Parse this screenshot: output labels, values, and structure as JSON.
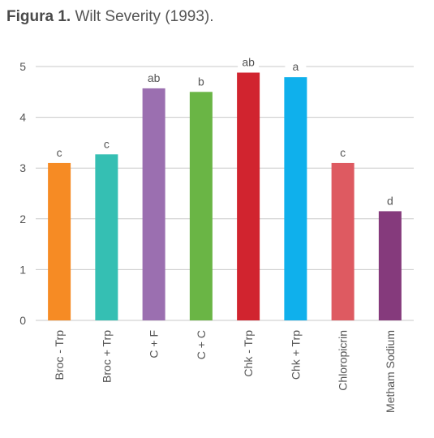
{
  "title": {
    "label": "Figura 1.",
    "text": "Wilt Severity (1993)."
  },
  "chart_data": {
    "type": "bar",
    "title": "Figura 1. Wilt Severity (1993).",
    "xlabel": "",
    "ylabel": "",
    "ylim": [
      0,
      5
    ],
    "yticks": [
      0,
      1,
      2,
      3,
      4,
      5
    ],
    "grid": true,
    "categories": [
      "Broc - Trp",
      "Broc + Trp",
      "C + F",
      "C + C",
      "Chk - Trp",
      "Chk + Trp",
      "Chloropicrin",
      "Metham Sodium"
    ],
    "values": [
      3.1,
      3.27,
      4.57,
      4.5,
      4.88,
      4.79,
      3.1,
      2.15
    ],
    "significance": [
      "c",
      "c",
      "ab",
      "b",
      "ab",
      "a",
      "c",
      "d"
    ],
    "colors": [
      "#f68b24",
      "#35bfb3",
      "#9b6fb0",
      "#6ab545",
      "#d1242f",
      "#0fb0ec",
      "#de5a61",
      "#853a7c"
    ]
  }
}
